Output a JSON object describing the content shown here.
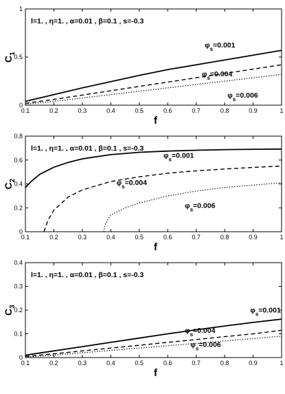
{
  "chart_data": [
    {
      "type": "line",
      "ylabel_main": "C",
      "ylabel_sub": "1",
      "xlabel": "f",
      "param_text": "l=1. , η=1. , α=0.01 , β=0.1 , s=-0.3",
      "xlim": [
        0.1,
        1
      ],
      "ylim": [
        0,
        1
      ],
      "xticks": [
        "0.1",
        "0.2",
        "0.3",
        "0.4",
        "0.5",
        "0.6",
        "0.7",
        "0.8",
        "0.9",
        "1"
      ],
      "yticks": [
        "0",
        "0.5",
        "1"
      ],
      "ytick_values": [
        0,
        0.5,
        1
      ],
      "series": [
        {
          "name": "φs=0.001",
          "style": "solid",
          "x": [
            0.1,
            0.2,
            0.3,
            0.4,
            0.5,
            0.6,
            0.7,
            0.8,
            0.9,
            1.0
          ],
          "y": [
            0.04,
            0.11,
            0.18,
            0.245,
            0.31,
            0.37,
            0.42,
            0.47,
            0.52,
            0.57
          ]
        },
        {
          "name": "φs=0.004",
          "style": "dashed",
          "x": [
            0.1,
            0.2,
            0.3,
            0.4,
            0.5,
            0.6,
            0.7,
            0.8,
            0.9,
            1.0
          ],
          "y": [
            0.02,
            0.06,
            0.105,
            0.15,
            0.195,
            0.24,
            0.285,
            0.33,
            0.375,
            0.42
          ]
        },
        {
          "name": "φs=0.006",
          "style": "dotted",
          "x": [
            0.1,
            0.2,
            0.3,
            0.4,
            0.5,
            0.6,
            0.7,
            0.8,
            0.9,
            1.0
          ],
          "y": [
            0.01,
            0.04,
            0.075,
            0.11,
            0.145,
            0.18,
            0.215,
            0.25,
            0.285,
            0.32
          ]
        }
      ],
      "annotations": [
        {
          "main": "φ",
          "sub": "s",
          "value": "=0.001",
          "x": 0.73,
          "y": 0.6
        },
        {
          "main": "φ",
          "sub": "s",
          "value": "=0.004",
          "x": 0.72,
          "y": 0.3
        },
        {
          "main": "φ",
          "sub": "s",
          "value": "=0.006",
          "x": 0.81,
          "y": 0.08
        }
      ]
    },
    {
      "type": "line",
      "ylabel_main": "C",
      "ylabel_sub": "2",
      "xlabel": "f",
      "param_text": "l=1. , η=1. , α=0.01 , β=0.1 , s=-0.3",
      "xlim": [
        0.1,
        1
      ],
      "ylim": [
        0,
        0.8
      ],
      "xticks": [
        "0.1",
        "0.2",
        "0.3",
        "0.4",
        "0.5",
        "0.6",
        "0.7",
        "0.8",
        "0.9",
        "1"
      ],
      "yticks": [
        "0",
        "0.2",
        "0.4",
        "0.6",
        "0.8"
      ],
      "ytick_values": [
        0,
        0.2,
        0.4,
        0.6,
        0.8
      ],
      "series": [
        {
          "name": "φs=0.001",
          "style": "solid",
          "x": [
            0.1,
            0.12,
            0.15,
            0.2,
            0.25,
            0.3,
            0.4,
            0.5,
            0.6,
            0.7,
            0.8,
            0.9,
            1.0
          ],
          "y": [
            0.37,
            0.42,
            0.48,
            0.54,
            0.58,
            0.61,
            0.645,
            0.665,
            0.675,
            0.682,
            0.687,
            0.69,
            0.692
          ]
        },
        {
          "name": "φs=0.004",
          "style": "dashed",
          "x": [
            0.165,
            0.18,
            0.2,
            0.25,
            0.3,
            0.4,
            0.5,
            0.6,
            0.7,
            0.8,
            0.9,
            1.0
          ],
          "y": [
            0.0,
            0.1,
            0.18,
            0.29,
            0.35,
            0.42,
            0.46,
            0.49,
            0.51,
            0.525,
            0.538,
            0.55
          ]
        },
        {
          "name": "φs=0.006",
          "style": "dotted",
          "x": [
            0.375,
            0.38,
            0.4,
            0.45,
            0.5,
            0.6,
            0.7,
            0.8,
            0.9,
            1.0
          ],
          "y": [
            0.0,
            0.06,
            0.14,
            0.2,
            0.24,
            0.3,
            0.34,
            0.37,
            0.39,
            0.41
          ]
        }
      ],
      "annotations": [
        {
          "main": "φ",
          "sub": "s",
          "value": "=0.001",
          "x": 0.585,
          "y": 0.62
        },
        {
          "main": "φ",
          "sub": "s",
          "value": "=0.004",
          "x": 0.42,
          "y": 0.39
        },
        {
          "main": "φ",
          "sub": "s",
          "value": "=0.006",
          "x": 0.66,
          "y": 0.2
        }
      ]
    },
    {
      "type": "line",
      "ylabel_main": "C",
      "ylabel_sub": "3",
      "xlabel": "f",
      "param_text": "l=1. , η=1. , α=0.01 , β=0.1 , s=-0.3",
      "xlim": [
        0.1,
        1
      ],
      "ylim": [
        0,
        0.4
      ],
      "xticks": [
        "0.1",
        "0.2",
        "0.3",
        "0.4",
        "0.5",
        "0.6",
        "0.7",
        "0.8",
        "0.9",
        "1"
      ],
      "yticks": [
        "0",
        "0.1",
        "0.2",
        "0.3",
        "0.4"
      ],
      "ytick_values": [
        0,
        0.1,
        0.2,
        0.3,
        0.4
      ],
      "series": [
        {
          "name": "φs=0.001",
          "style": "solid",
          "x": [
            0.1,
            0.2,
            0.3,
            0.4,
            0.5,
            0.6,
            0.7,
            0.8,
            0.9,
            1.0
          ],
          "y": [
            0.01,
            0.028,
            0.046,
            0.064,
            0.082,
            0.1,
            0.117,
            0.133,
            0.148,
            0.162
          ]
        },
        {
          "name": "φs=0.004",
          "style": "dashed",
          "x": [
            0.1,
            0.2,
            0.3,
            0.4,
            0.5,
            0.6,
            0.7,
            0.8,
            0.9,
            1.0
          ],
          "y": [
            0.005,
            0.016,
            0.028,
            0.04,
            0.052,
            0.064,
            0.076,
            0.088,
            0.1,
            0.115
          ]
        },
        {
          "name": "φs=0.006",
          "style": "dotted",
          "x": [
            0.1,
            0.2,
            0.3,
            0.4,
            0.5,
            0.6,
            0.7,
            0.8,
            0.9,
            1.0
          ],
          "y": [
            0.002,
            0.01,
            0.02,
            0.03,
            0.04,
            0.05,
            0.06,
            0.07,
            0.08,
            0.09
          ]
        }
      ],
      "annotations": [
        {
          "main": "φ",
          "sub": "s",
          "value": "=0.001",
          "x": 0.89,
          "y": 0.19
        },
        {
          "main": "φ",
          "sub": "s",
          "value": "=0.004",
          "x": 0.66,
          "y": 0.105
        },
        {
          "main": "φ",
          "sub": "s",
          "value": "=0.006",
          "x": 0.68,
          "y": 0.045
        }
      ]
    }
  ]
}
